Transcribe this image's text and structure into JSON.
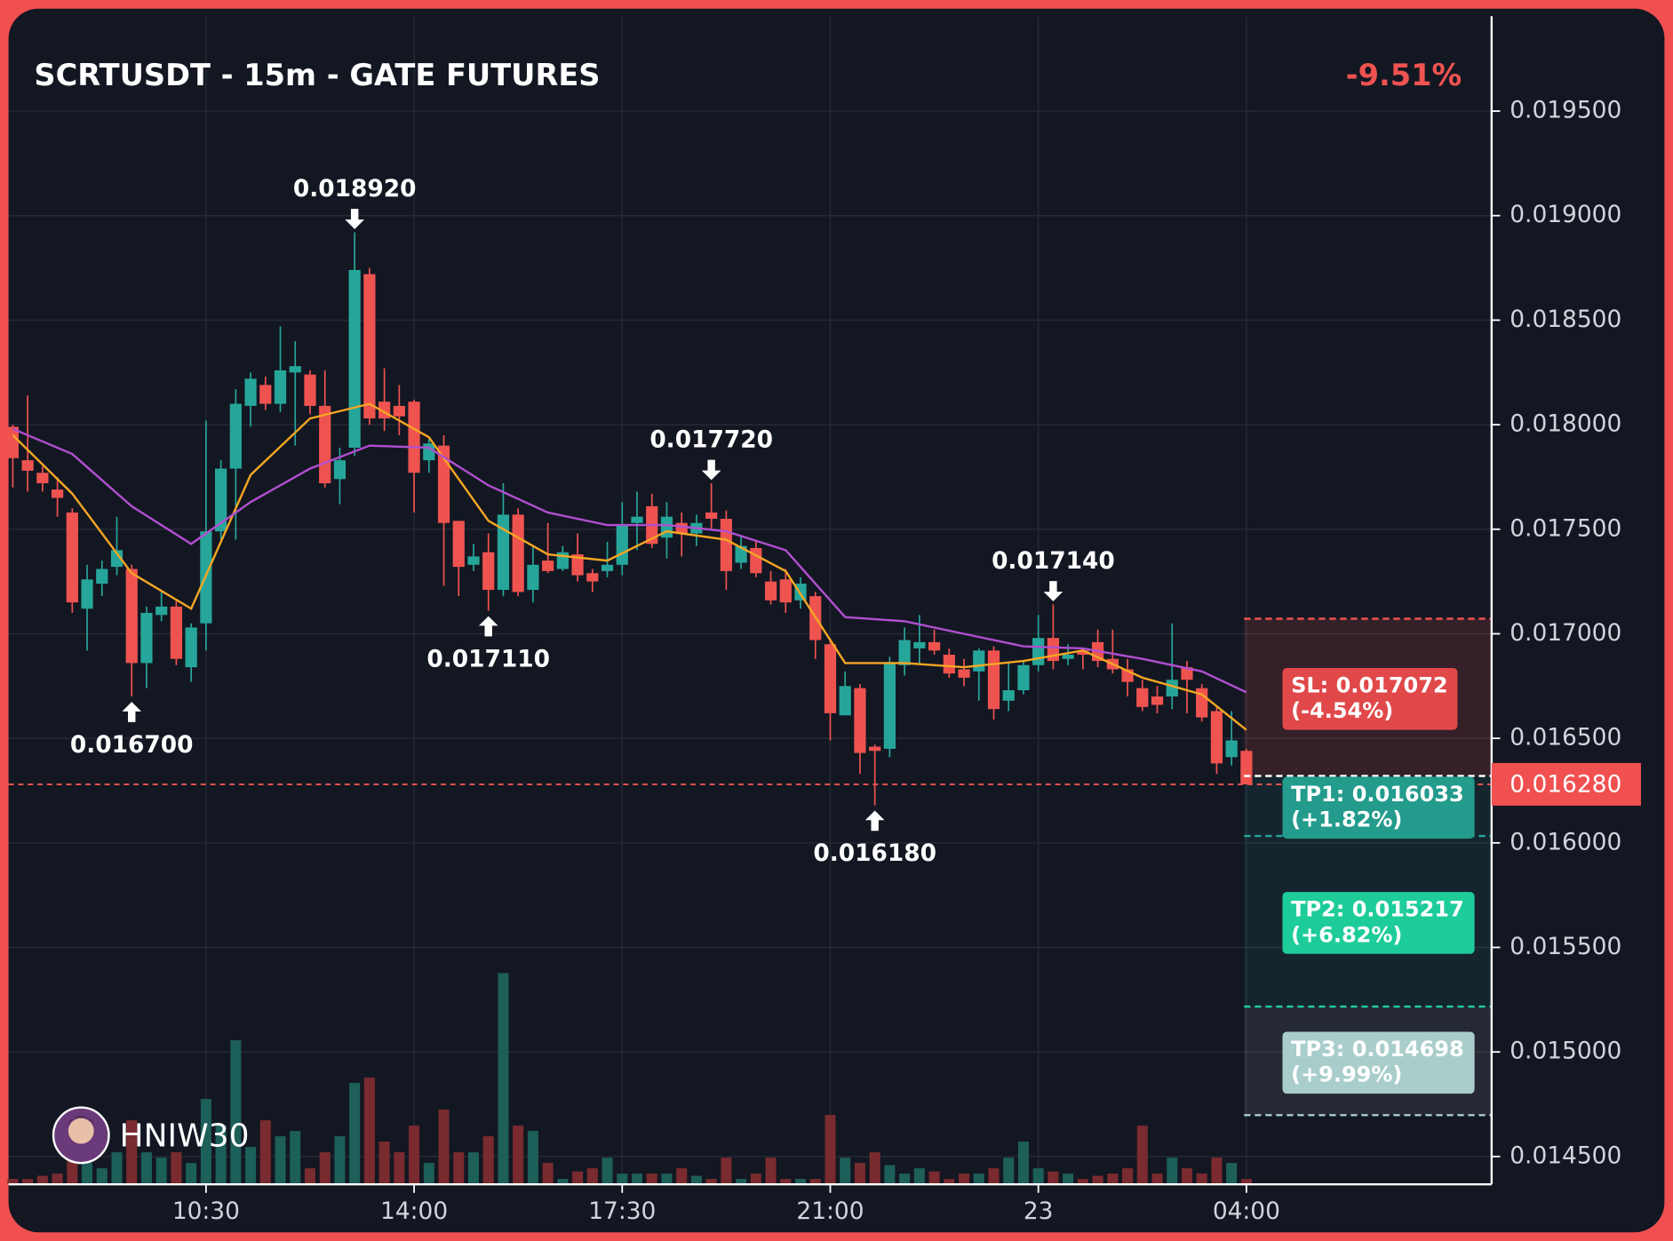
{
  "chart_data": {
    "type": "candlestick",
    "title": "SCRTUSDT - 15m - GATE FUTURES",
    "change": {
      "value": -9.51,
      "label": "-9.51%"
    },
    "categories": [
      null,
      null,
      null,
      null,
      null,
      null,
      null,
      null,
      null,
      null,
      null,
      null,
      null,
      "10:30",
      null,
      null,
      null,
      null,
      null,
      null,
      null,
      null,
      null,
      null,
      null,
      null,
      null,
      "14:00",
      null,
      null,
      null,
      null,
      null,
      null,
      null,
      null,
      null,
      null,
      null,
      null,
      null,
      "17:30",
      null,
      null,
      null,
      null,
      null,
      null,
      null,
      null,
      null,
      null,
      null,
      null,
      null,
      "21:00",
      null,
      null,
      null,
      null,
      null,
      null,
      null,
      null,
      null,
      null,
      null,
      null,
      null,
      "23",
      null,
      null,
      null,
      null,
      null,
      null,
      null,
      null,
      null,
      null,
      null,
      null,
      null,
      "04:00"
    ],
    "open": [
      0.01799,
      0.01783,
      0.01777,
      0.01769,
      0.01758,
      0.01712,
      0.01724,
      0.01732,
      0.01731,
      0.01686,
      0.01709,
      0.01713,
      0.01684,
      0.01705,
      0.01749,
      0.01779,
      0.01809,
      0.01819,
      0.0181,
      0.01825,
      0.01824,
      0.01809,
      0.01774,
      0.01789,
      0.01872,
      0.01811,
      0.01809,
      0.01811,
      0.01783,
      0.0179,
      0.01754,
      0.01733,
      0.01739,
      0.01721,
      0.01757,
      0.01721,
      0.01735,
      0.01731,
      0.01738,
      0.01729,
      0.0173,
      0.01733,
      0.01753,
      0.01761,
      0.01746,
      0.01753,
      0.01748,
      0.01758,
      0.01755,
      0.01734,
      0.01741,
      0.01725,
      0.01726,
      0.01716,
      0.01718,
      0.01695,
      0.01661,
      0.01674,
      0.01646,
      0.01645,
      0.01685,
      0.01693,
      0.01696,
      0.0169,
      0.01683,
      0.01682,
      0.01692,
      0.01668,
      0.01673,
      0.01685,
      0.01698,
      0.01688,
      0.01692,
      0.01696,
      0.01688,
      0.01683,
      0.01674,
      0.0167,
      0.0167,
      0.01684,
      0.01674,
      0.01663,
      0.01641,
      0.01644
    ],
    "high": [
      0.018,
      0.01814,
      0.0178,
      0.01775,
      0.0176,
      0.01733,
      0.01735,
      0.01756,
      0.01733,
      0.01713,
      0.0172,
      0.01716,
      0.01705,
      0.01802,
      0.01783,
      0.01817,
      0.01825,
      0.01823,
      0.01847,
      0.0184,
      0.01826,
      0.01826,
      0.01789,
      0.01892,
      0.01875,
      0.01827,
      0.01819,
      0.01812,
      0.01793,
      0.01795,
      0.01754,
      0.01743,
      0.01748,
      0.01772,
      0.0176,
      0.01742,
      0.01753,
      0.01742,
      0.01748,
      0.01731,
      0.01744,
      0.01763,
      0.01768,
      0.01767,
      0.01763,
      0.01758,
      0.01757,
      0.01772,
      0.01759,
      0.01747,
      0.01745,
      0.0173,
      0.01731,
      0.01727,
      0.0172,
      0.01697,
      0.01682,
      0.01676,
      0.01647,
      0.01689,
      0.01703,
      0.01709,
      0.01702,
      0.01693,
      0.01688,
      0.01693,
      0.01694,
      0.01686,
      0.01687,
      0.01709,
      0.01714,
      0.01695,
      0.01693,
      0.01702,
      0.01702,
      0.01688,
      0.01678,
      0.01675,
      0.01705,
      0.01687,
      0.01676,
      0.01665,
      0.01663,
      0.01645
    ],
    "low": [
      0.0177,
      0.01768,
      0.01768,
      0.01756,
      0.0171,
      0.01692,
      0.01718,
      0.01728,
      0.0167,
      0.01674,
      0.01706,
      0.01685,
      0.01677,
      0.01692,
      0.01745,
      0.01745,
      0.01799,
      0.01807,
      0.01806,
      0.0179,
      0.01805,
      0.0177,
      0.01762,
      0.01785,
      0.018,
      0.01797,
      0.01795,
      0.01758,
      0.01777,
      0.01723,
      0.01718,
      0.0173,
      0.01711,
      0.01718,
      0.01718,
      0.01715,
      0.01729,
      0.0173,
      0.01725,
      0.0172,
      0.01727,
      0.01728,
      0.0174,
      0.01741,
      0.01736,
      0.01737,
      0.01742,
      0.0175,
      0.01721,
      0.01731,
      0.01727,
      0.01714,
      0.0171,
      0.01712,
      0.01688,
      0.01649,
      0.01661,
      0.01633,
      0.01618,
      0.01641,
      0.0168,
      0.01686,
      0.0169,
      0.01679,
      0.01675,
      0.01668,
      0.01659,
      0.01663,
      0.01671,
      0.01682,
      0.01683,
      0.01685,
      0.01683,
      0.01684,
      0.01681,
      0.0167,
      0.01663,
      0.01662,
      0.01664,
      0.01662,
      0.01658,
      0.01633,
      0.01637,
      0.01628
    ],
    "close": [
      0.01784,
      0.01778,
      0.01772,
      0.01765,
      0.01715,
      0.01726,
      0.01731,
      0.0174,
      0.01686,
      0.0171,
      0.01713,
      0.01688,
      0.01703,
      0.01749,
      0.01779,
      0.0181,
      0.01822,
      0.0181,
      0.01826,
      0.01828,
      0.01809,
      0.01772,
      0.01783,
      0.01874,
      0.01803,
      0.01803,
      0.01804,
      0.01777,
      0.01791,
      0.01753,
      0.01732,
      0.01737,
      0.01721,
      0.01757,
      0.0172,
      0.01733,
      0.0173,
      0.01739,
      0.01728,
      0.01725,
      0.01733,
      0.01752,
      0.01756,
      0.01743,
      0.01756,
      0.01748,
      0.01753,
      0.01755,
      0.0173,
      0.01742,
      0.01729,
      0.01716,
      0.01715,
      0.01724,
      0.01697,
      0.01662,
      0.01675,
      0.01643,
      0.01644,
      0.01686,
      0.01697,
      0.01696,
      0.01692,
      0.01681,
      0.01679,
      0.01692,
      0.01664,
      0.01673,
      0.01685,
      0.01698,
      0.01687,
      0.0169,
      0.0169,
      0.01687,
      0.01683,
      0.01677,
      0.01665,
      0.01666,
      0.01678,
      0.01678,
      0.0166,
      0.01638,
      0.01649,
      0.01628
    ],
    "volume": [
      5,
      5,
      8,
      10,
      25,
      20,
      15,
      30,
      60,
      30,
      25,
      30,
      20,
      80,
      55,
      135,
      35,
      60,
      45,
      50,
      15,
      30,
      45,
      95,
      100,
      40,
      30,
      55,
      20,
      70,
      30,
      30,
      45,
      198,
      55,
      50,
      20,
      5,
      12,
      15,
      25,
      10,
      10,
      10,
      10,
      15,
      8,
      5,
      25,
      5,
      10,
      25,
      5,
      5,
      5,
      65,
      25,
      20,
      30,
      18,
      10,
      15,
      12,
      5,
      10,
      10,
      15,
      25,
      40,
      15,
      12,
      10,
      5,
      8,
      10,
      15,
      55,
      10,
      25,
      15,
      10,
      25,
      20,
      5
    ],
    "colors": {
      "up": "#26a69a",
      "down": "#ef5350",
      "volume_up": "#1d5f59",
      "volume_down": "#7a2b2f"
    },
    "series": [
      {
        "color": "#f5a623",
        "x": [
          0,
          4,
          8,
          12,
          16,
          20,
          24,
          28,
          32,
          36,
          40,
          44,
          48,
          52,
          56,
          60,
          64,
          68,
          72,
          76,
          80,
          83
        ],
        "values": [
          0.01795,
          0.01767,
          0.01729,
          0.01712,
          0.01776,
          0.01803,
          0.0181,
          0.01794,
          0.01754,
          0.01738,
          0.01735,
          0.01749,
          0.01745,
          0.0173,
          0.01686,
          0.01686,
          0.01684,
          0.01687,
          0.01692,
          0.01679,
          0.01671,
          0.01654
        ]
      },
      {
        "color": "#b04fcf",
        "x": [
          0,
          4,
          8,
          12,
          16,
          20,
          24,
          28,
          32,
          36,
          40,
          44,
          48,
          52,
          56,
          60,
          64,
          68,
          72,
          76,
          80,
          83
        ],
        "values": [
          0.01798,
          0.01786,
          0.01761,
          0.01743,
          0.01763,
          0.01779,
          0.0179,
          0.01789,
          0.01771,
          0.01758,
          0.01752,
          0.01752,
          0.01749,
          0.0174,
          0.01708,
          0.01706,
          0.017,
          0.01694,
          0.01693,
          0.01688,
          0.01682,
          0.01672
        ]
      }
    ],
    "ylim": [
      0.014367,
      0.019954
    ],
    "yticks": [
      {
        "value": 0.0145,
        "label": "0.014500"
      },
      {
        "value": 0.015,
        "label": "0.015000"
      },
      {
        "value": 0.0155,
        "label": "0.015500"
      },
      {
        "value": 0.016,
        "label": "0.016000"
      },
      {
        "value": 0.0165,
        "label": "0.016500"
      },
      {
        "value": 0.017,
        "label": "0.017000"
      },
      {
        "value": 0.0175,
        "label": "0.017500"
      },
      {
        "value": 0.018,
        "label": "0.018000"
      },
      {
        "value": 0.0185,
        "label": "0.018500"
      },
      {
        "value": 0.019,
        "label": "0.019000"
      },
      {
        "value": 0.0195,
        "label": "0.019500"
      }
    ],
    "grid": true,
    "last_price": {
      "value": 0.01628,
      "label": "0.016280"
    },
    "annotations": [
      {
        "x": 23,
        "value": 0.01892,
        "label": "0.018920",
        "kind": "high"
      },
      {
        "x": 8,
        "value": 0.0167,
        "label": "0.016700",
        "kind": "low"
      },
      {
        "x": 47,
        "value": 0.01772,
        "label": "0.017720",
        "kind": "high"
      },
      {
        "x": 32,
        "value": 0.01711,
        "label": "0.017110",
        "kind": "low"
      },
      {
        "x": 58,
        "value": 0.01618,
        "label": "0.016180",
        "kind": "low"
      },
      {
        "x": 70,
        "value": 0.01714,
        "label": "0.017140",
        "kind": "high"
      }
    ],
    "entry": 0.01632,
    "levels": [
      {
        "value": 0.017072,
        "label": "SL: 0.017072",
        "pct": "(-4.54%)",
        "color": "#e0484a",
        "line": "#ef5350",
        "text": "#ffffff"
      },
      {
        "value": 0.016033,
        "label": "TP1: 0.016033",
        "pct": "(+1.82%)",
        "color": "#239b8d",
        "line": "#26a69a",
        "text": "#ffffff"
      },
      {
        "value": 0.015217,
        "label": "TP2: 0.015217",
        "pct": "(+6.82%)",
        "color": "#1ecc9a",
        "line": "#1ecc9a",
        "text": "#ffffff"
      },
      {
        "value": 0.014698,
        "label": "TP3: 0.014698",
        "pct": "(+9.99%)",
        "color": "#a9cdca",
        "line": "#a9cdca",
        "text": "#ffffff"
      }
    ],
    "watermark": "HNIW30"
  }
}
